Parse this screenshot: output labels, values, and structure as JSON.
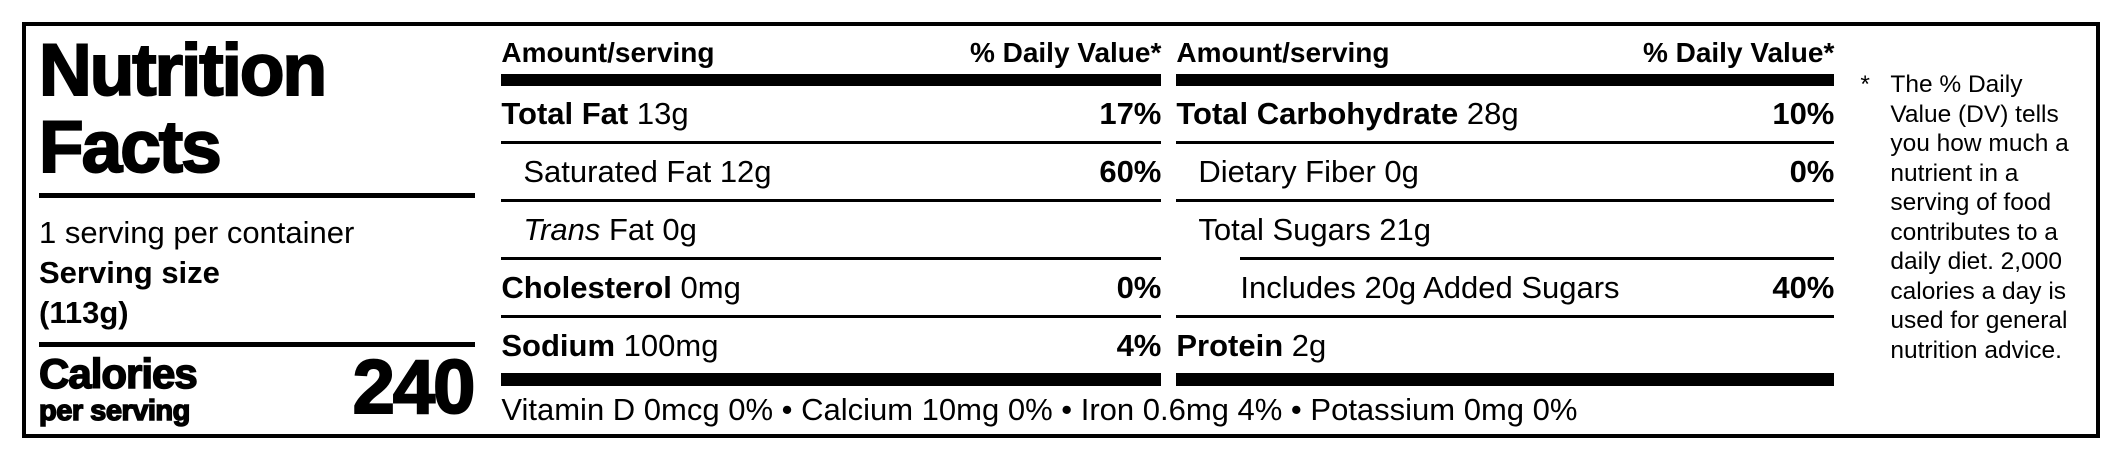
{
  "colors": {
    "ink": "#000000",
    "background": "#ffffff"
  },
  "label": {
    "title_line1": "Nutrition",
    "title_line2": "Facts",
    "servings_per_container": "1 serving per container",
    "serving_size_label": "Serving size",
    "serving_size_value": "(113g)",
    "calories_label": "Calories",
    "calories_sublabel": "per serving",
    "calories_value": "240",
    "columns": [
      {
        "header_amount": "Amount/serving",
        "header_dv": "% Daily Value*",
        "rows": [
          {
            "italic": "",
            "bold": "Total Fat",
            "rest": " 13g",
            "dv": "17%"
          },
          {
            "italic": "",
            "bold": "",
            "rest": "Saturated Fat 12g",
            "dv": "60%"
          },
          {
            "italic": "Trans",
            "bold": "",
            "rest": " Fat 0g",
            "dv": ""
          },
          {
            "italic": "",
            "bold": "Cholesterol",
            "rest": " 0mg",
            "dv": "0%"
          },
          {
            "italic": "",
            "bold": "Sodium",
            "rest": " 100mg",
            "dv": "4%"
          }
        ]
      },
      {
        "header_amount": "Amount/serving",
        "header_dv": "% Daily Value*",
        "rows": [
          {
            "italic": "",
            "bold": "Total Carbohydrate",
            "rest": " 28g",
            "dv": "10%"
          },
          {
            "italic": "",
            "bold": "",
            "rest": "Dietary Fiber 0g",
            "dv": "0%"
          },
          {
            "italic": "",
            "bold": "",
            "rest": "Total Sugars 21g",
            "dv": ""
          },
          {
            "italic": "",
            "bold": "",
            "rest": "Includes 20g Added Sugars",
            "dv": "40%"
          },
          {
            "italic": "",
            "bold": "Protein",
            "rest": " 2g",
            "dv": ""
          }
        ]
      }
    ],
    "micronutrients": "Vitamin D 0mcg 0% • Calcium 10mg 0% • Iron 0.6mg 4% • Potassium 0mg 0%",
    "footnote": {
      "marker": "*",
      "text": "The % Daily Value (DV) tells you how much a nutrient in a serving of food contributes to a daily diet. 2,000 calories a day is used for general nutrition advice."
    }
  }
}
